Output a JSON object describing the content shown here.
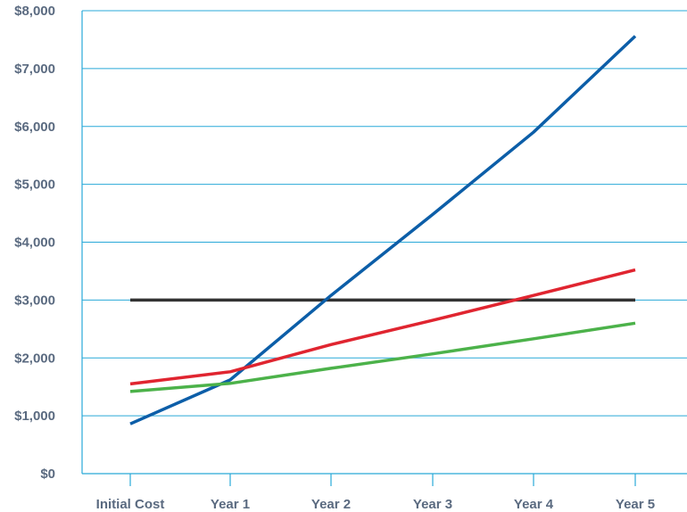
{
  "chart_data": {
    "type": "line",
    "title": "",
    "xlabel": "",
    "ylabel": "",
    "categories": [
      "Initial Cost",
      "Year 1",
      "Year 2",
      "Year 3",
      "Year 4",
      "Year 5"
    ],
    "ylim": [
      0,
      8000
    ],
    "yticks": [
      "$0",
      "$1,000",
      "$2,000",
      "$3,000",
      "$4,000",
      "$5,000",
      "$6,000",
      "$7,000",
      "$8,000"
    ],
    "grid": true,
    "legend": "none",
    "series": [
      {
        "color": "#333333",
        "values": [
          3000,
          3000,
          3000,
          3000,
          3000,
          3000
        ]
      },
      {
        "color": "#0c5ea8",
        "values": [
          860,
          1620,
          3080,
          4480,
          5900,
          7560
        ]
      },
      {
        "color": "#e02530",
        "values": [
          1550,
          1760,
          2230,
          2650,
          3080,
          3520
        ]
      },
      {
        "color": "#4cb24a",
        "values": [
          1420,
          1560,
          1820,
          2070,
          2330,
          2600
        ]
      }
    ],
    "colors": {
      "grid": "#29a9d8",
      "axis": "#29a9d8",
      "ticks": "#5a6a80"
    }
  }
}
